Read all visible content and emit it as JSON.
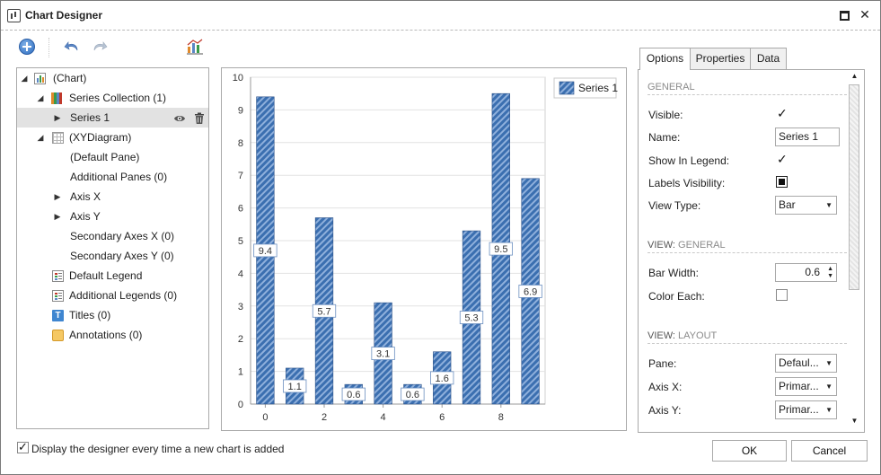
{
  "window": {
    "title": "Chart Designer"
  },
  "tree": {
    "items": [
      {
        "label": "(Chart)"
      },
      {
        "label": "Series Collection (1)"
      },
      {
        "label": "Series 1"
      },
      {
        "label": "(XYDiagram)"
      },
      {
        "label": "(Default Pane)"
      },
      {
        "label": "Additional Panes (0)"
      },
      {
        "label": "Axis X"
      },
      {
        "label": "Axis Y"
      },
      {
        "label": "Secondary Axes X (0)"
      },
      {
        "label": "Secondary Axes Y (0)"
      },
      {
        "label": "Default Legend"
      },
      {
        "label": "Additional Legends (0)"
      },
      {
        "label": "Titles (0)"
      },
      {
        "label": "Annotations (0)"
      }
    ]
  },
  "chart_data": {
    "type": "bar",
    "x": [
      0,
      1,
      2,
      3,
      4,
      5,
      6,
      7,
      8,
      9
    ],
    "series": [
      {
        "name": "Series 1",
        "values": [
          9.4,
          1.1,
          5.7,
          0.6,
          3.1,
          0.6,
          1.6,
          5.3,
          9.5,
          6.9
        ],
        "data_labels": [
          "9.4",
          "1.1",
          "5.7",
          "0.6",
          "3.1",
          "0.6",
          "1.6",
          "5.3",
          "9.5",
          "6.9"
        ]
      }
    ],
    "x_tick_labels": [
      "0",
      "2",
      "4",
      "6",
      "8"
    ],
    "y_tick_labels": [
      "0",
      "1",
      "2",
      "3",
      "4",
      "5",
      "6",
      "7",
      "8",
      "9",
      "10"
    ],
    "ylim": [
      0,
      10
    ],
    "xlim": [
      -0.5,
      9.5
    ],
    "grid": true,
    "legend_position": "top-right",
    "bar_fill": "#3b6fb0",
    "bar_stripe": "#8fb0dc"
  },
  "tabs": [
    {
      "label": "Options"
    },
    {
      "label": "Properties"
    },
    {
      "label": "Data"
    }
  ],
  "options": {
    "general_header": "GENERAL",
    "view_general_prefix": "VIEW: ",
    "view_general_suffix": "GENERAL",
    "view_layout_prefix": "VIEW: ",
    "view_layout_suffix": "LAYOUT",
    "visible_label": "Visible:",
    "visible_checked": true,
    "name_label": "Name:",
    "name_value": "Series 1",
    "show_in_legend_label": "Show In Legend:",
    "show_in_legend_checked": true,
    "labels_visibility_label": "Labels Visibility:",
    "view_type_label": "View Type:",
    "view_type_value": "Bar",
    "bar_width_label": "Bar Width:",
    "bar_width_value": "0.6",
    "color_each_label": "Color Each:",
    "color_each_checked": false,
    "pane_label": "Pane:",
    "pane_value": "Defaul...",
    "axis_x_label": "Axis X:",
    "axis_x_value": "Primar...",
    "axis_y_label": "Axis Y:",
    "axis_y_value": "Primar..."
  },
  "footer": {
    "checkbox_label": "Display the designer every time a new chart is added",
    "checkbox_checked": true,
    "ok_label": "OK",
    "cancel_label": "Cancel"
  },
  "icons": {
    "close": "✕",
    "arrow_down": "▼",
    "arrow_up": "▲",
    "tree_expanded": "◢",
    "tree_collapsed": "▶"
  }
}
